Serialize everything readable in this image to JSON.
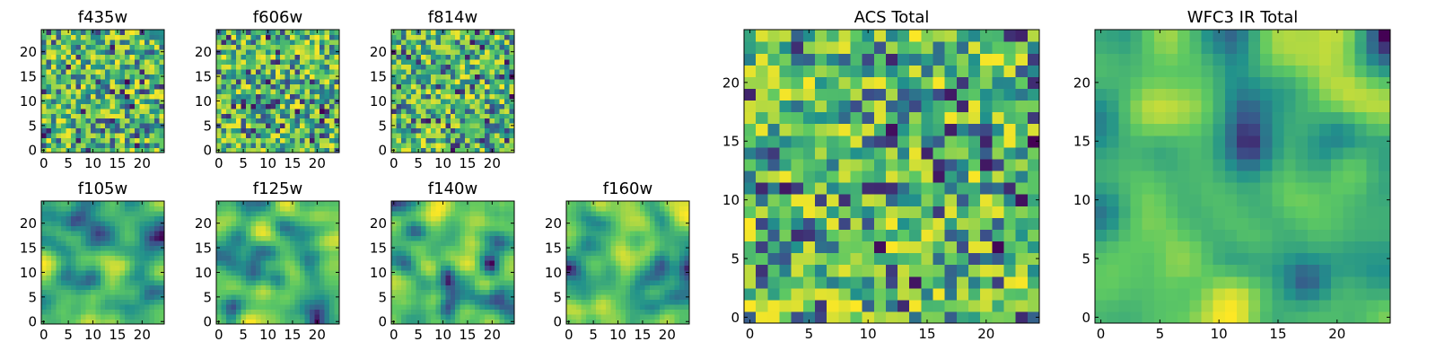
{
  "figure": {
    "colormap": "viridis",
    "colormap_stops": [
      "#440154",
      "#3b528b",
      "#21918c",
      "#5ec962",
      "#fde725"
    ],
    "grid": false
  },
  "chart_data": [
    {
      "type": "heatmap",
      "title": "f435w",
      "xlim": [
        0,
        24
      ],
      "ylim": [
        0,
        24
      ],
      "xticks": [
        0,
        5,
        10,
        15,
        20
      ],
      "yticks": [
        0,
        5,
        10,
        15,
        20
      ],
      "texture": "noise"
    },
    {
      "type": "heatmap",
      "title": "f606w",
      "xlim": [
        0,
        24
      ],
      "ylim": [
        0,
        24
      ],
      "xticks": [
        0,
        5,
        10,
        15,
        20
      ],
      "yticks": [
        0,
        5,
        10,
        15,
        20
      ],
      "texture": "noise"
    },
    {
      "type": "heatmap",
      "title": "f814w",
      "xlim": [
        0,
        24
      ],
      "ylim": [
        0,
        24
      ],
      "xticks": [
        0,
        5,
        10,
        15,
        20
      ],
      "yticks": [
        0,
        5,
        10,
        15,
        20
      ],
      "texture": "noise"
    },
    {
      "type": "heatmap",
      "title": "f105w",
      "xlim": [
        0,
        24
      ],
      "ylim": [
        0,
        24
      ],
      "xticks": [
        0,
        5,
        10,
        15,
        20
      ],
      "yticks": [
        0,
        5,
        10,
        15,
        20
      ],
      "texture": "smooth"
    },
    {
      "type": "heatmap",
      "title": "f125w",
      "xlim": [
        0,
        24
      ],
      "ylim": [
        0,
        24
      ],
      "xticks": [
        0,
        5,
        10,
        15,
        20
      ],
      "yticks": [
        0,
        5,
        10,
        15,
        20
      ],
      "texture": "smooth"
    },
    {
      "type": "heatmap",
      "title": "f140w",
      "xlim": [
        0,
        24
      ],
      "ylim": [
        0,
        24
      ],
      "xticks": [
        0,
        5,
        10,
        15,
        20
      ],
      "yticks": [
        0,
        5,
        10,
        15,
        20
      ],
      "texture": "smooth"
    },
    {
      "type": "heatmap",
      "title": "f160w",
      "xlim": [
        0,
        24
      ],
      "ylim": [
        0,
        24
      ],
      "xticks": [
        0,
        5,
        10,
        15,
        20
      ],
      "yticks": [
        0,
        5,
        10,
        15,
        20
      ],
      "texture": "smooth"
    },
    {
      "type": "heatmap",
      "title": "ACS Total",
      "xlim": [
        0,
        24
      ],
      "ylim": [
        0,
        24
      ],
      "xticks": [
        0,
        5,
        10,
        15,
        20
      ],
      "yticks": [
        0,
        5,
        10,
        15,
        20
      ],
      "texture": "noise"
    },
    {
      "type": "heatmap",
      "title": "WFC3 IR Total",
      "xlim": [
        0,
        24
      ],
      "ylim": [
        0,
        24
      ],
      "xticks": [
        0,
        5,
        10,
        15,
        20
      ],
      "yticks": [
        0,
        5,
        10,
        15,
        20
      ],
      "texture": "smooth"
    }
  ]
}
